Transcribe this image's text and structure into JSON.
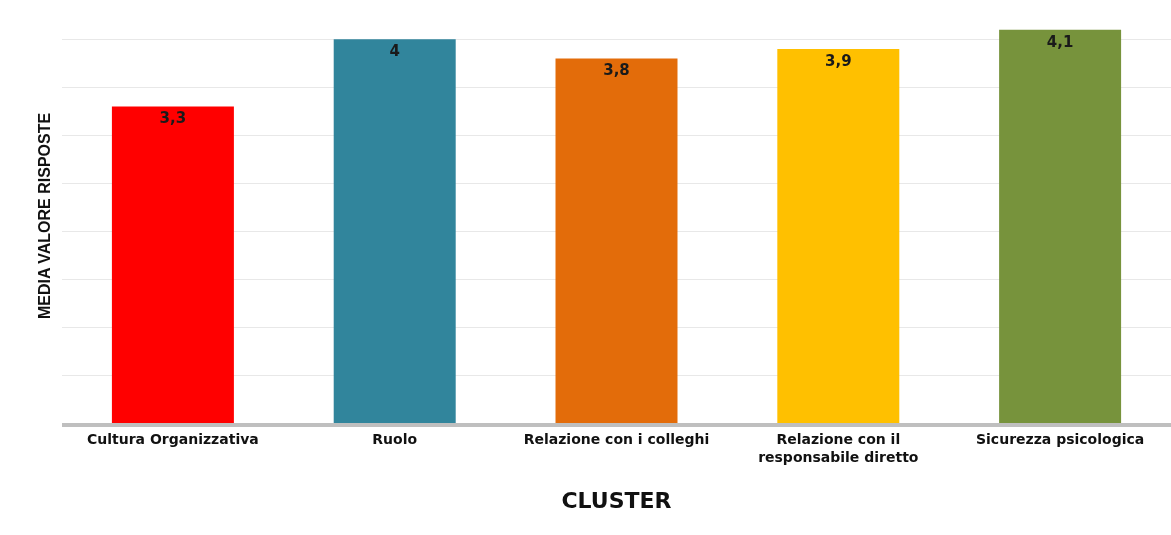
{
  "chart_data": {
    "type": "bar",
    "xlabel": "CLUSTER",
    "ylabel": "MEDIA VALORE RISPOSTE",
    "categories": [
      "Cultura Organizzativa",
      "Ruolo",
      "Relazione con i colleghi",
      "Relazione con il responsabile diretto",
      "Sicurezza psicologica"
    ],
    "values": [
      3.3,
      4,
      3.8,
      3.9,
      4.1
    ],
    "colors": [
      "#ff0000",
      "#31859c",
      "#e36c0a",
      "#ffc000",
      "#77933c"
    ],
    "value_labels": [
      "3,3",
      "4",
      "3,8",
      "3,9",
      "4,1"
    ],
    "tick_labels": "x",
    "grid": "y"
  }
}
